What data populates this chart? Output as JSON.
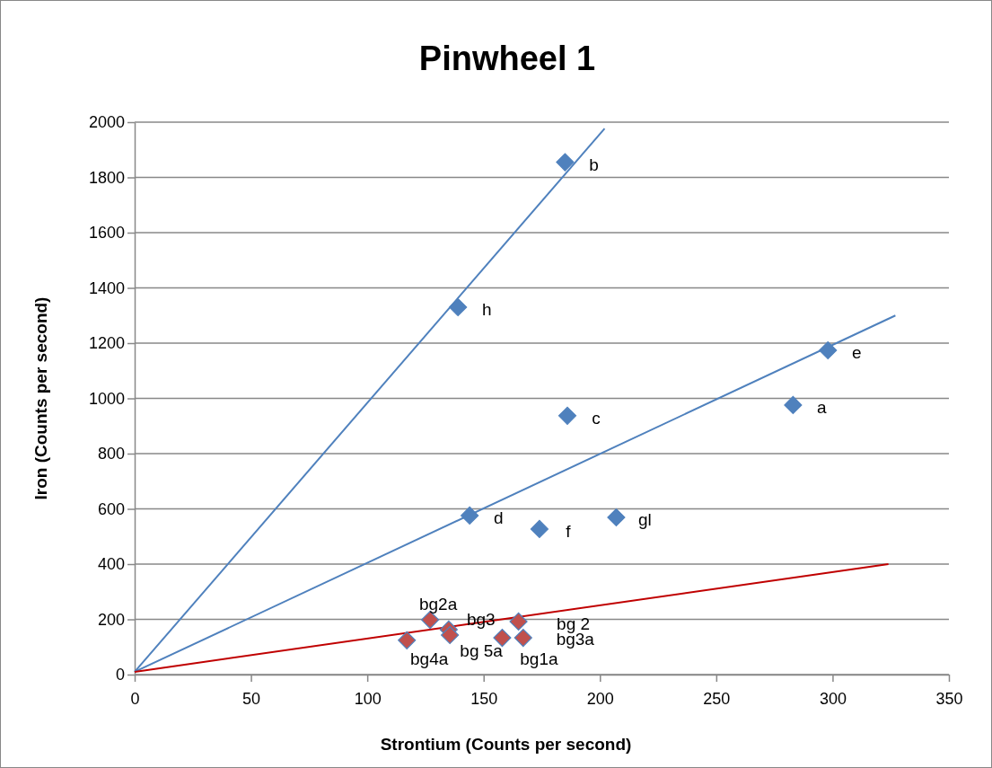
{
  "chart_data": {
    "type": "scatter",
    "title": "Pinwheel 1",
    "xlabel": "Strontium (Counts per second)",
    "ylabel": "Iron (Counts per second)",
    "xlim": [
      0,
      350
    ],
    "xticks": [
      0,
      50,
      100,
      150,
      200,
      250,
      300,
      350
    ],
    "ylim": [
      0,
      2000
    ],
    "yticks": [
      0,
      200,
      400,
      600,
      800,
      1000,
      1200,
      1400,
      1600,
      1800,
      2000
    ],
    "grid": "y",
    "marker": "diamond",
    "series": [
      {
        "type": "scatter",
        "color": "#4f81bd",
        "x": [
          185,
          139,
          298,
          283,
          186,
          144,
          174,
          207
        ],
        "values": [
          1855,
          1330,
          1174,
          976,
          937,
          576,
          527,
          569
        ]
      },
      {
        "type": "scatter",
        "color": "#c0504d",
        "x": [
          127,
          135,
          135.5,
          117,
          158,
          165,
          167
        ],
        "values": [
          198,
          163,
          143,
          124,
          133,
          192,
          133
        ]
      },
      {
        "type": "line",
        "color": "#4f81bd",
        "marker": "none",
        "x": [
          0,
          202
        ],
        "values": [
          10,
          1977
        ]
      },
      {
        "type": "line",
        "color": "#4f81bd",
        "marker": "none",
        "x": [
          0,
          327
        ],
        "values": [
          10,
          1300
        ]
      },
      {
        "type": "line",
        "color": "#c00000",
        "marker": "none",
        "x": [
          0,
          324
        ],
        "values": [
          10,
          400
        ]
      }
    ],
    "annotations": [
      {
        "text": "b",
        "x": 185,
        "y": 1855
      },
      {
        "text": "h",
        "x": 139,
        "y": 1330
      },
      {
        "text": "e",
        "x": 298,
        "y": 1174
      },
      {
        "text": "a",
        "x": 283,
        "y": 976
      },
      {
        "text": "c",
        "x": 186,
        "y": 937
      },
      {
        "text": "d",
        "x": 144,
        "y": 576
      },
      {
        "text": "f",
        "x": 174,
        "y": 527
      },
      {
        "text": "gl",
        "x": 207,
        "y": 569
      },
      {
        "text": "bg2a",
        "x": 127,
        "y": 198
      },
      {
        "text": "bg3",
        "x": 135,
        "y": 163
      },
      {
        "text": "bg 5a",
        "x": 135.5,
        "y": 143
      },
      {
        "text": "bg4a",
        "x": 117,
        "y": 124
      },
      {
        "text": "bg1a",
        "x": 158,
        "y": 133
      },
      {
        "text": "bg 2",
        "x": 165,
        "y": 192
      },
      {
        "text": "bg3a",
        "x": 167,
        "y": 133
      }
    ]
  }
}
